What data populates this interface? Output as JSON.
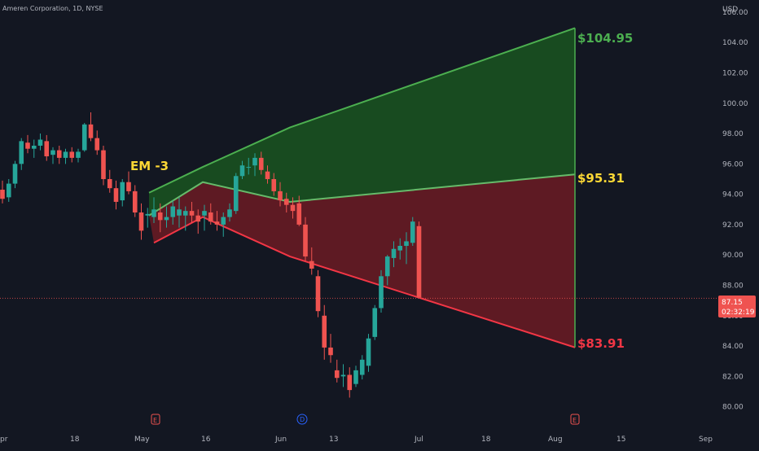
{
  "header": {
    "symbol_line": "Ameren Corporation, 1D, NYSE",
    "currency": "USD"
  },
  "colors": {
    "background": "#131722",
    "up": "#26a69a",
    "down": "#ef5350",
    "upper_band": "#4caf50",
    "mid_band": "#fdd835",
    "lower_band": "#f23645",
    "text": "#b2b5be",
    "price_line": "#ef5350"
  },
  "chart_data": {
    "type": "candlestick",
    "title": "Ameren Corporation, 1D, NYSE",
    "y_unit": "USD",
    "ylim": [
      78.8,
      106.8
    ],
    "y_ticks": [
      "80.00",
      "82.00",
      "84.00",
      "86.00",
      "88.00",
      "90.00",
      "92.00",
      "94.00",
      "96.00",
      "98.00",
      "100.00",
      "102.00",
      "104.00",
      "106.00"
    ],
    "x_ticks": [
      "pr",
      "18",
      "May",
      "16",
      "Jun",
      "13",
      "Jul",
      "18",
      "Aug",
      "15",
      "Sep"
    ],
    "grid": false,
    "candles_ohlc": [
      [
        94.3,
        94.9,
        93.4,
        93.7
      ],
      [
        93.8,
        95.0,
        93.5,
        94.7
      ],
      [
        94.7,
        96.2,
        94.4,
        96.0
      ],
      [
        96.0,
        97.7,
        95.6,
        97.5
      ],
      [
        97.4,
        97.9,
        96.7,
        97.0
      ],
      [
        97.0,
        97.6,
        96.4,
        97.2
      ],
      [
        97.2,
        98.0,
        96.9,
        97.6
      ],
      [
        97.5,
        97.9,
        96.2,
        96.5
      ],
      [
        96.6,
        97.1,
        96.0,
        96.9
      ],
      [
        96.9,
        97.2,
        96.0,
        96.4
      ],
      [
        96.4,
        97.0,
        96.0,
        96.8
      ],
      [
        96.8,
        97.1,
        96.1,
        96.4
      ],
      [
        96.4,
        97.0,
        96.1,
        96.8
      ],
      [
        96.9,
        98.7,
        96.8,
        98.6
      ],
      [
        98.6,
        99.4,
        97.5,
        97.7
      ],
      [
        97.7,
        98.2,
        96.6,
        96.9
      ],
      [
        96.9,
        97.2,
        94.6,
        95.0
      ],
      [
        95.0,
        95.6,
        94.1,
        94.4
      ],
      [
        94.4,
        94.9,
        93.0,
        93.5
      ],
      [
        93.6,
        95.0,
        93.2,
        94.8
      ],
      [
        94.8,
        95.5,
        94.0,
        94.2
      ],
      [
        94.2,
        94.6,
        92.5,
        92.8
      ],
      [
        92.8,
        93.4,
        91.0,
        91.6
      ],
      [
        92.6,
        93.1,
        91.8,
        92.7
      ],
      [
        92.5,
        93.8,
        92.1,
        93.0
      ],
      [
        92.8,
        93.4,
        91.5,
        92.3
      ],
      [
        92.3,
        93.2,
        91.8,
        92.5
      ],
      [
        92.5,
        93.6,
        92.0,
        93.2
      ],
      [
        92.6,
        93.8,
        91.8,
        93.0
      ],
      [
        92.6,
        93.2,
        91.6,
        92.9
      ],
      [
        92.9,
        93.5,
        92.1,
        92.6
      ],
      [
        92.6,
        93.0,
        91.4,
        92.2
      ],
      [
        92.6,
        93.3,
        91.6,
        92.9
      ],
      [
        92.8,
        93.4,
        92.0,
        92.2
      ],
      [
        92.2,
        92.9,
        91.6,
        92.0
      ],
      [
        92.0,
        92.8,
        91.2,
        92.5
      ],
      [
        92.5,
        93.4,
        92.2,
        93.0
      ],
      [
        92.9,
        95.4,
        92.7,
        95.2
      ],
      [
        95.2,
        96.2,
        95.0,
        95.9
      ],
      [
        95.8,
        96.4,
        95.3,
        95.8
      ],
      [
        95.9,
        96.7,
        95.2,
        96.4
      ],
      [
        96.4,
        96.8,
        95.3,
        95.6
      ],
      [
        95.5,
        95.9,
        94.7,
        95.0
      ],
      [
        95.0,
        95.4,
        93.9,
        94.2
      ],
      [
        94.2,
        94.8,
        93.2,
        93.6
      ],
      [
        93.7,
        94.1,
        92.8,
        93.3
      ],
      [
        93.3,
        93.8,
        92.4,
        92.9
      ],
      [
        93.4,
        93.9,
        91.9,
        92.0
      ],
      [
        92.0,
        92.5,
        89.6,
        89.9
      ],
      [
        89.6,
        90.5,
        88.7,
        89.1
      ],
      [
        88.6,
        89.0,
        85.9,
        86.3
      ],
      [
        86.0,
        86.7,
        83.1,
        83.9
      ],
      [
        83.9,
        84.8,
        82.9,
        83.4
      ],
      [
        82.4,
        83.1,
        81.6,
        81.9
      ],
      [
        82.0,
        82.8,
        81.3,
        82.1
      ],
      [
        82.1,
        82.6,
        80.6,
        81.1
      ],
      [
        81.5,
        82.7,
        81.3,
        82.4
      ],
      [
        82.1,
        83.4,
        81.8,
        83.1
      ],
      [
        82.7,
        84.8,
        82.3,
        84.5
      ],
      [
        84.6,
        86.7,
        84.4,
        86.5
      ],
      [
        86.5,
        89.0,
        86.2,
        88.6
      ],
      [
        88.6,
        90.0,
        88.0,
        89.9
      ],
      [
        89.8,
        90.9,
        89.2,
        90.4
      ],
      [
        90.3,
        91.1,
        89.7,
        90.6
      ],
      [
        90.6,
        91.5,
        89.4,
        90.9
      ],
      [
        90.8,
        92.5,
        90.6,
        92.2
      ],
      [
        91.9,
        92.2,
        87.2,
        87.2
      ]
    ],
    "expected_move": {
      "label": "EM -3",
      "upper_target": 104.95,
      "mid_target": 95.31,
      "lower_target": 83.91,
      "upper_label": "$104.95",
      "mid_label": "$95.31",
      "lower_label": "$83.91",
      "upper_path": [
        94.1,
        95.8,
        98.4,
        104.95
      ],
      "mid_path": [
        92.6,
        94.8,
        93.5,
        95.31
      ],
      "lower_path": [
        90.8,
        92.5,
        89.9,
        83.91
      ]
    },
    "current_price": {
      "value": 87.15,
      "label": "87.15",
      "countdown": "02:32:19"
    },
    "event_markers": [
      "E",
      "D",
      "E"
    ]
  }
}
